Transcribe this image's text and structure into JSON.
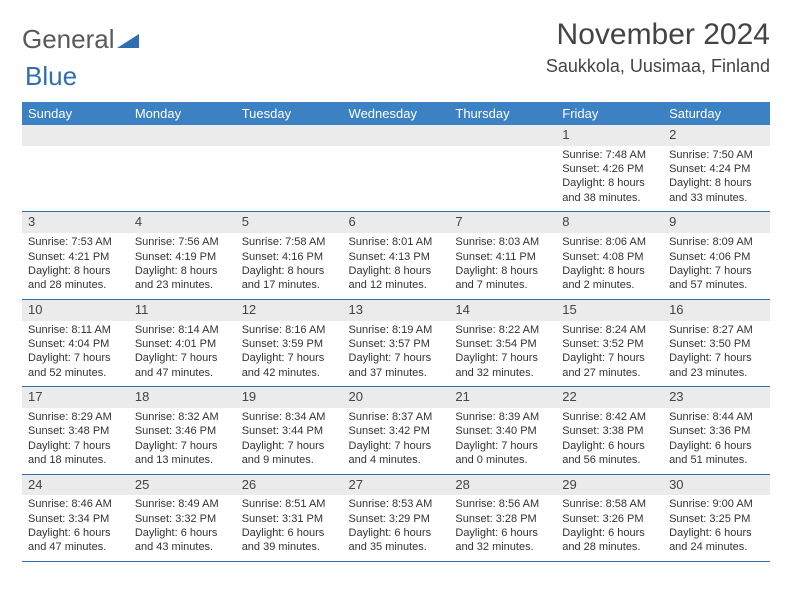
{
  "logo": {
    "part1": "General",
    "part2": "Blue",
    "accent_color": "#2f6fb0",
    "text_color": "#5a5a5a"
  },
  "header": {
    "month_title": "November 2024",
    "location": "Saukkola, Uusimaa, Finland"
  },
  "calendar": {
    "header_bg": "#3b81c3",
    "header_text_color": "#ffffff",
    "daynum_bg": "#ebebeb",
    "border_color": "#2f6fb0",
    "background_color": "#ffffff",
    "font_family": "Arial",
    "day_headers": [
      "Sunday",
      "Monday",
      "Tuesday",
      "Wednesday",
      "Thursday",
      "Friday",
      "Saturday"
    ],
    "weeks": [
      [
        {
          "num": "",
          "lines": [
            "",
            "",
            "",
            ""
          ]
        },
        {
          "num": "",
          "lines": [
            "",
            "",
            "",
            ""
          ]
        },
        {
          "num": "",
          "lines": [
            "",
            "",
            "",
            ""
          ]
        },
        {
          "num": "",
          "lines": [
            "",
            "",
            "",
            ""
          ]
        },
        {
          "num": "",
          "lines": [
            "",
            "",
            "",
            ""
          ]
        },
        {
          "num": "1",
          "lines": [
            "Sunrise: 7:48 AM",
            "Sunset: 4:26 PM",
            "Daylight: 8 hours",
            "and 38 minutes."
          ]
        },
        {
          "num": "2",
          "lines": [
            "Sunrise: 7:50 AM",
            "Sunset: 4:24 PM",
            "Daylight: 8 hours",
            "and 33 minutes."
          ]
        }
      ],
      [
        {
          "num": "3",
          "lines": [
            "Sunrise: 7:53 AM",
            "Sunset: 4:21 PM",
            "Daylight: 8 hours",
            "and 28 minutes."
          ]
        },
        {
          "num": "4",
          "lines": [
            "Sunrise: 7:56 AM",
            "Sunset: 4:19 PM",
            "Daylight: 8 hours",
            "and 23 minutes."
          ]
        },
        {
          "num": "5",
          "lines": [
            "Sunrise: 7:58 AM",
            "Sunset: 4:16 PM",
            "Daylight: 8 hours",
            "and 17 minutes."
          ]
        },
        {
          "num": "6",
          "lines": [
            "Sunrise: 8:01 AM",
            "Sunset: 4:13 PM",
            "Daylight: 8 hours",
            "and 12 minutes."
          ]
        },
        {
          "num": "7",
          "lines": [
            "Sunrise: 8:03 AM",
            "Sunset: 4:11 PM",
            "Daylight: 8 hours",
            "and 7 minutes."
          ]
        },
        {
          "num": "8",
          "lines": [
            "Sunrise: 8:06 AM",
            "Sunset: 4:08 PM",
            "Daylight: 8 hours",
            "and 2 minutes."
          ]
        },
        {
          "num": "9",
          "lines": [
            "Sunrise: 8:09 AM",
            "Sunset: 4:06 PM",
            "Daylight: 7 hours",
            "and 57 minutes."
          ]
        }
      ],
      [
        {
          "num": "10",
          "lines": [
            "Sunrise: 8:11 AM",
            "Sunset: 4:04 PM",
            "Daylight: 7 hours",
            "and 52 minutes."
          ]
        },
        {
          "num": "11",
          "lines": [
            "Sunrise: 8:14 AM",
            "Sunset: 4:01 PM",
            "Daylight: 7 hours",
            "and 47 minutes."
          ]
        },
        {
          "num": "12",
          "lines": [
            "Sunrise: 8:16 AM",
            "Sunset: 3:59 PM",
            "Daylight: 7 hours",
            "and 42 minutes."
          ]
        },
        {
          "num": "13",
          "lines": [
            "Sunrise: 8:19 AM",
            "Sunset: 3:57 PM",
            "Daylight: 7 hours",
            "and 37 minutes."
          ]
        },
        {
          "num": "14",
          "lines": [
            "Sunrise: 8:22 AM",
            "Sunset: 3:54 PM",
            "Daylight: 7 hours",
            "and 32 minutes."
          ]
        },
        {
          "num": "15",
          "lines": [
            "Sunrise: 8:24 AM",
            "Sunset: 3:52 PM",
            "Daylight: 7 hours",
            "and 27 minutes."
          ]
        },
        {
          "num": "16",
          "lines": [
            "Sunrise: 8:27 AM",
            "Sunset: 3:50 PM",
            "Daylight: 7 hours",
            "and 23 minutes."
          ]
        }
      ],
      [
        {
          "num": "17",
          "lines": [
            "Sunrise: 8:29 AM",
            "Sunset: 3:48 PM",
            "Daylight: 7 hours",
            "and 18 minutes."
          ]
        },
        {
          "num": "18",
          "lines": [
            "Sunrise: 8:32 AM",
            "Sunset: 3:46 PM",
            "Daylight: 7 hours",
            "and 13 minutes."
          ]
        },
        {
          "num": "19",
          "lines": [
            "Sunrise: 8:34 AM",
            "Sunset: 3:44 PM",
            "Daylight: 7 hours",
            "and 9 minutes."
          ]
        },
        {
          "num": "20",
          "lines": [
            "Sunrise: 8:37 AM",
            "Sunset: 3:42 PM",
            "Daylight: 7 hours",
            "and 4 minutes."
          ]
        },
        {
          "num": "21",
          "lines": [
            "Sunrise: 8:39 AM",
            "Sunset: 3:40 PM",
            "Daylight: 7 hours",
            "and 0 minutes."
          ]
        },
        {
          "num": "22",
          "lines": [
            "Sunrise: 8:42 AM",
            "Sunset: 3:38 PM",
            "Daylight: 6 hours",
            "and 56 minutes."
          ]
        },
        {
          "num": "23",
          "lines": [
            "Sunrise: 8:44 AM",
            "Sunset: 3:36 PM",
            "Daylight: 6 hours",
            "and 51 minutes."
          ]
        }
      ],
      [
        {
          "num": "24",
          "lines": [
            "Sunrise: 8:46 AM",
            "Sunset: 3:34 PM",
            "Daylight: 6 hours",
            "and 47 minutes."
          ]
        },
        {
          "num": "25",
          "lines": [
            "Sunrise: 8:49 AM",
            "Sunset: 3:32 PM",
            "Daylight: 6 hours",
            "and 43 minutes."
          ]
        },
        {
          "num": "26",
          "lines": [
            "Sunrise: 8:51 AM",
            "Sunset: 3:31 PM",
            "Daylight: 6 hours",
            "and 39 minutes."
          ]
        },
        {
          "num": "27",
          "lines": [
            "Sunrise: 8:53 AM",
            "Sunset: 3:29 PM",
            "Daylight: 6 hours",
            "and 35 minutes."
          ]
        },
        {
          "num": "28",
          "lines": [
            "Sunrise: 8:56 AM",
            "Sunset: 3:28 PM",
            "Daylight: 6 hours",
            "and 32 minutes."
          ]
        },
        {
          "num": "29",
          "lines": [
            "Sunrise: 8:58 AM",
            "Sunset: 3:26 PM",
            "Daylight: 6 hours",
            "and 28 minutes."
          ]
        },
        {
          "num": "30",
          "lines": [
            "Sunrise: 9:00 AM",
            "Sunset: 3:25 PM",
            "Daylight: 6 hours",
            "and 24 minutes."
          ]
        }
      ]
    ]
  }
}
